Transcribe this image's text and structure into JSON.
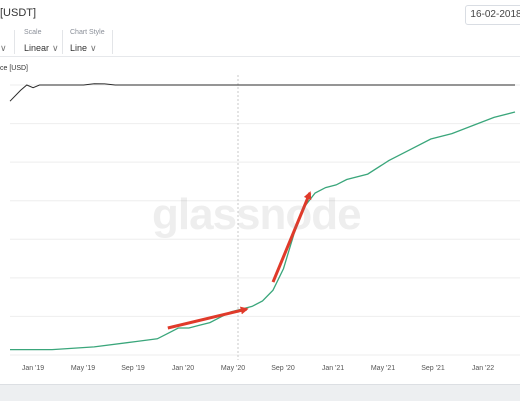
{
  "header": {
    "asset_label": "[USDT]",
    "date_value": "16-02-2018"
  },
  "controls": {
    "scale_title": "Scale",
    "scale_value": "Linear",
    "style_title": "Chart Style",
    "style_value": "Line"
  },
  "watermark": "glassnode",
  "colors": {
    "price_line": "#2b2b2b",
    "metric_line": "#3aa67b",
    "arrow": "#e03a2a",
    "grid": "#eeeeee"
  },
  "chart_data": {
    "type": "line",
    "ylabel": "ce [USD]",
    "x_tick_labels": [
      "Jan '19",
      "May '19",
      "Sep '19",
      "Jan '20",
      "May '20",
      "Sep '20",
      "Jan '21",
      "May '21",
      "Sep '21",
      "Jan '22"
    ],
    "series": [
      {
        "points": [
          [
            0.0,
            0.94
          ],
          [
            1.0,
            0.98
          ],
          [
            1.6,
            1.0
          ],
          [
            2.2,
            0.99
          ],
          [
            2.8,
            1.0
          ],
          [
            3.4,
            1.0
          ],
          [
            4.0,
            1.0
          ],
          [
            4.6,
            1.0
          ],
          [
            5.2,
            1.0
          ],
          [
            5.8,
            1.0
          ],
          [
            6.4,
            1.0
          ],
          [
            7.0,
            1.0
          ],
          [
            8.0,
            1.005
          ],
          [
            9.0,
            1.004
          ],
          [
            10.0,
            1.0
          ],
          [
            11.0,
            1.0
          ],
          [
            12.0,
            1.0
          ],
          [
            14.0,
            1.0
          ],
          [
            15.0,
            1.0
          ],
          [
            16.0,
            1.0
          ],
          [
            18.0,
            1.0
          ],
          [
            20.0,
            1.0
          ],
          [
            22.0,
            1.0
          ],
          [
            24.0,
            1.0
          ],
          [
            26.0,
            1.0
          ],
          [
            28.0,
            1.0
          ],
          [
            30.0,
            1.0
          ],
          [
            32.0,
            1.0
          ],
          [
            34.0,
            1.0
          ],
          [
            36.0,
            1.0
          ],
          [
            38.0,
            1.0
          ],
          [
            40.0,
            1.0
          ],
          [
            42.0,
            1.0
          ],
          [
            44.0,
            1.0
          ],
          [
            46.0,
            1.0
          ],
          [
            48.0,
            1.0
          ]
        ]
      },
      {
        "points": [
          [
            0.0,
            0.02
          ],
          [
            4.0,
            0.02
          ],
          [
            8.0,
            0.03
          ],
          [
            12.0,
            0.05
          ],
          [
            14.0,
            0.06
          ],
          [
            15.0,
            0.08
          ],
          [
            16.0,
            0.1
          ],
          [
            17.0,
            0.1
          ],
          [
            18.0,
            0.11
          ],
          [
            19.0,
            0.12
          ],
          [
            20.0,
            0.14
          ],
          [
            21.0,
            0.16
          ],
          [
            22.0,
            0.17
          ],
          [
            23.0,
            0.18
          ],
          [
            24.0,
            0.2
          ],
          [
            25.0,
            0.24
          ],
          [
            26.0,
            0.32
          ],
          [
            27.0,
            0.45
          ],
          [
            28.0,
            0.55
          ],
          [
            29.0,
            0.6
          ],
          [
            30.0,
            0.62
          ],
          [
            31.0,
            0.63
          ],
          [
            32.0,
            0.65
          ],
          [
            34.0,
            0.67
          ],
          [
            36.0,
            0.72
          ],
          [
            38.0,
            0.76
          ],
          [
            40.0,
            0.8
          ],
          [
            42.0,
            0.82
          ],
          [
            44.0,
            0.85
          ],
          [
            46.0,
            0.88
          ],
          [
            48.0,
            0.9
          ]
        ]
      }
    ],
    "annotations": [
      {
        "type": "arrow",
        "from": [
          15.0,
          0.1
        ],
        "to": [
          22.5,
          0.17
        ]
      },
      {
        "type": "arrow",
        "from": [
          25.0,
          0.27
        ],
        "to": [
          28.5,
          0.6
        ]
      }
    ]
  }
}
